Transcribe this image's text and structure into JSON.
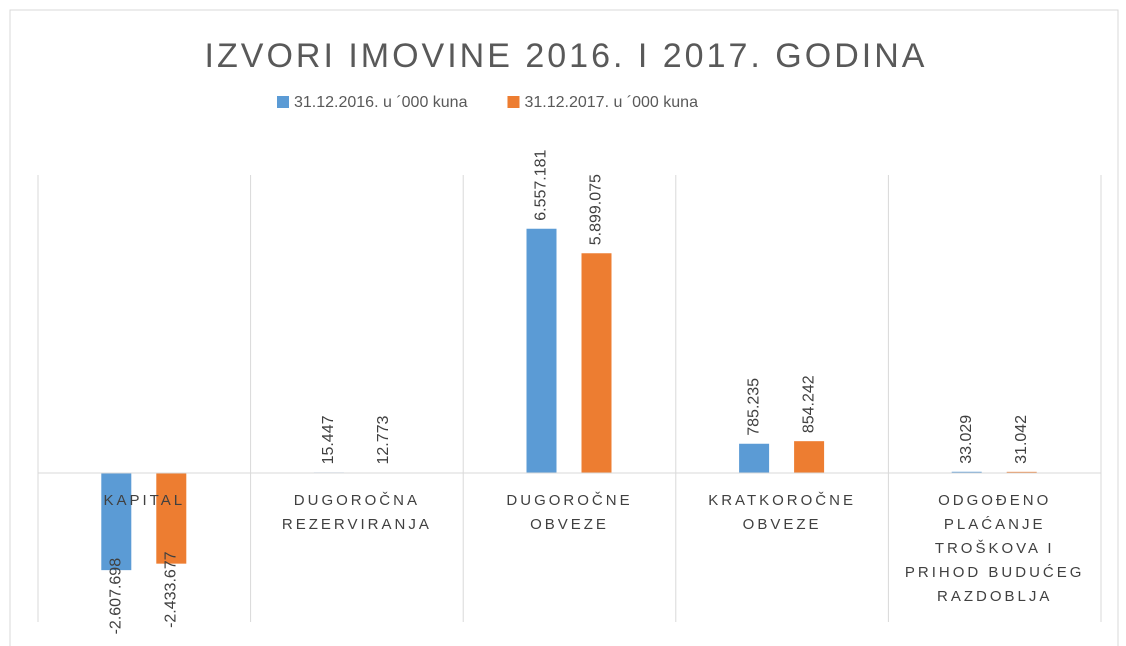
{
  "chart_data": {
    "type": "bar",
    "title": "IZVORI IMOVINE 2016. I 2017. GODINA",
    "categories": [
      "KAPITAL",
      "DUGOROČNA REZERVIRANJA",
      "DUGOROČNE OBVEZE",
      "KRATKOROČNE OBVEZE",
      "ODGOĐENO PLAĆANJE TROŠKOVA I PRIHOD BUDUĆEG RAZDOBLJA"
    ],
    "series": [
      {
        "name": "31.12.2016. u ´000 kuna",
        "color": "#5b9bd5",
        "values": [
          -2607698,
          15447,
          6557181,
          785235,
          33029
        ],
        "value_labels": [
          "-2.607.698",
          "15.447",
          "6.557.181",
          "785.235",
          "33.029"
        ]
      },
      {
        "name": "31.12.2017. u ´000 kuna",
        "color": "#ed7d31",
        "values": [
          -2433677,
          12773,
          5899075,
          854242,
          31042
        ],
        "value_labels": [
          "-2.433.677",
          "12.773",
          "5.899.075",
          "854.242",
          "31.042"
        ]
      }
    ],
    "ylim": [
      -4000000,
      8000000
    ],
    "legend": "top"
  }
}
